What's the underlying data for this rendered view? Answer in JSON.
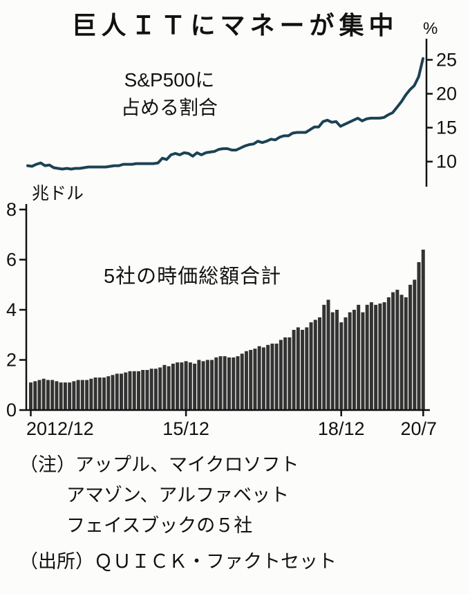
{
  "title": "巨人ＩＴにマネーが集中",
  "colors": {
    "line": "#1b4254",
    "bar": "#333333",
    "axis": "#111111"
  },
  "notes": {
    "line1": "（注）アップル、マイクロソフト",
    "line2": "アマゾン、アルファベット",
    "line3": "フェイスブックの５社",
    "source": "（出所）ＱＵＩＣＫ・ファクトセット"
  },
  "chart_data": [
    {
      "type": "line",
      "title": "S&P500に占める割合",
      "label_lines": [
        "S&P500に",
        "占める割合"
      ],
      "unit": "%",
      "ylabel": "S&P500に占める割合（%）",
      "ylim": [
        6.5,
        27.5
      ],
      "yticks": [
        10,
        15,
        20,
        25
      ],
      "x_start": "2012/12",
      "x_end": "2020/7",
      "frequency": "monthly",
      "values": [
        9.4,
        9.3,
        9.6,
        9.8,
        9.4,
        9.5,
        9.1,
        9.0,
        8.9,
        9.0,
        8.9,
        9.0,
        9.0,
        9.1,
        9.2,
        9.2,
        9.2,
        9.2,
        9.2,
        9.3,
        9.4,
        9.4,
        9.6,
        9.6,
        9.6,
        9.7,
        9.7,
        9.7,
        9.7,
        9.7,
        9.8,
        10.5,
        10.3,
        11.0,
        11.2,
        11.0,
        11.3,
        11.2,
        10.8,
        11.3,
        11.0,
        11.3,
        11.4,
        11.5,
        11.8,
        11.9,
        11.9,
        11.7,
        11.7,
        12.0,
        12.3,
        12.5,
        12.6,
        13.0,
        12.8,
        13.0,
        13.3,
        13.2,
        13.6,
        13.8,
        13.8,
        14.2,
        14.3,
        14.3,
        14.3,
        14.7,
        15.1,
        15.1,
        15.9,
        16.1,
        15.8,
        15.9,
        15.2,
        15.5,
        15.8,
        16.1,
        16.4,
        16.0,
        16.3,
        16.4,
        16.4,
        16.4,
        16.5,
        16.9,
        17.2,
        18.0,
        18.8,
        19.8,
        20.6,
        21.2,
        22.5,
        25.2
      ]
    },
    {
      "type": "bar",
      "title": "5社の時価総額合計",
      "unit": "兆ドル",
      "ylabel": "時価総額合計（兆ドル）",
      "ylim": [
        0,
        8
      ],
      "yticks": [
        0,
        2,
        4,
        6,
        8
      ],
      "x_start": "2012/12",
      "x_end": "2020/7",
      "frequency": "monthly",
      "xticks": [
        {
          "index": 0,
          "label": "2012/12"
        },
        {
          "index": 36,
          "label": "15/12"
        },
        {
          "index": 72,
          "label": "18/12"
        },
        {
          "index": 91,
          "label": "20/7"
        }
      ],
      "values": [
        1.1,
        1.15,
        1.2,
        1.25,
        1.2,
        1.2,
        1.15,
        1.1,
        1.1,
        1.1,
        1.15,
        1.2,
        1.2,
        1.2,
        1.25,
        1.3,
        1.3,
        1.3,
        1.35,
        1.4,
        1.45,
        1.45,
        1.5,
        1.55,
        1.55,
        1.55,
        1.6,
        1.6,
        1.65,
        1.65,
        1.7,
        1.8,
        1.75,
        1.85,
        1.9,
        1.9,
        1.95,
        1.9,
        1.85,
        2.0,
        1.95,
        2.0,
        2.0,
        2.1,
        2.15,
        2.15,
        2.1,
        2.1,
        2.15,
        2.25,
        2.35,
        2.4,
        2.45,
        2.55,
        2.5,
        2.6,
        2.65,
        2.65,
        2.8,
        2.9,
        2.9,
        3.2,
        3.3,
        3.2,
        3.3,
        3.5,
        3.6,
        3.7,
        4.2,
        4.4,
        3.9,
        4.0,
        3.5,
        3.7,
        3.9,
        4.0,
        4.2,
        3.9,
        4.2,
        4.3,
        4.2,
        4.25,
        4.3,
        4.5,
        4.7,
        4.8,
        4.6,
        4.5,
        5.0,
        5.2,
        5.9,
        6.4
      ]
    }
  ]
}
